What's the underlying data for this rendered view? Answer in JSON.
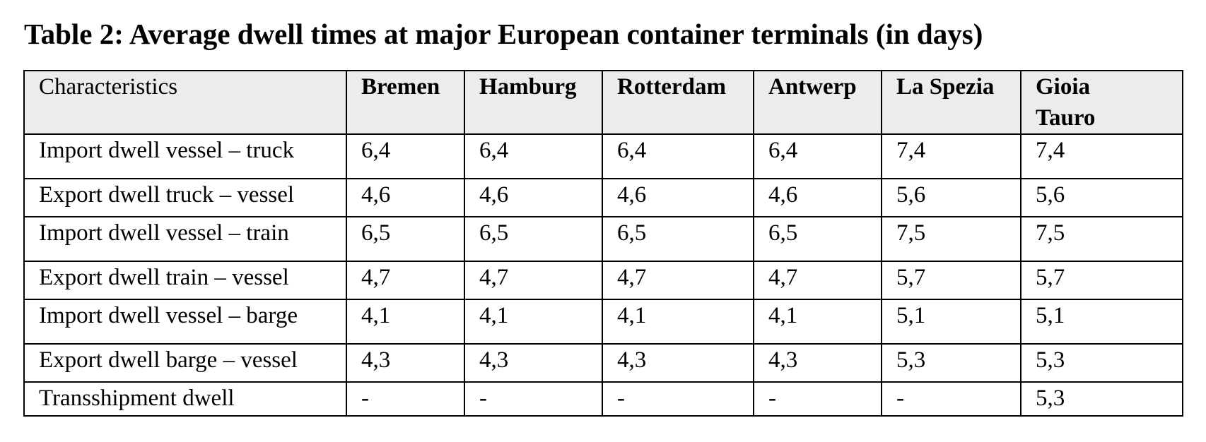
{
  "title": "Table 2: Average dwell times at major European container terminals (in days)",
  "table": {
    "headers": [
      "Characteristics",
      "Bremen",
      "Hamburg",
      "Rotterdam",
      "Antwerp",
      "La Spezia",
      "Gioia Tauro"
    ],
    "rows": [
      [
        "Import dwell vessel – truck",
        "6,4",
        "6,4",
        "6,4",
        "6,4",
        "7,4",
        "7,4"
      ],
      [
        "Export dwell truck – vessel",
        "4,6",
        "4,6",
        "4,6",
        "4,6",
        "5,6",
        "5,6"
      ],
      [
        "Import dwell vessel – train",
        "6,5",
        "6,5",
        "6,5",
        "6,5",
        "7,5",
        "7,5"
      ],
      [
        "Export dwell train – vessel",
        "4,7",
        "4,7",
        "4,7",
        "4,7",
        "5,7",
        "5,7"
      ],
      [
        "Import dwell vessel – barge",
        "4,1",
        "4,1",
        "4,1",
        "4,1",
        "5,1",
        "5,1"
      ],
      [
        "Export dwell barge – vessel",
        "4,3",
        "4,3",
        "4,3",
        "4,3",
        "5,3",
        "5,3"
      ],
      [
        "Transshipment dwell",
        "-",
        "-",
        "-",
        "-",
        "-",
        "5,3"
      ]
    ]
  },
  "colors": {
    "header_background": "#ececec",
    "border": "#000000",
    "text": "#000000"
  }
}
